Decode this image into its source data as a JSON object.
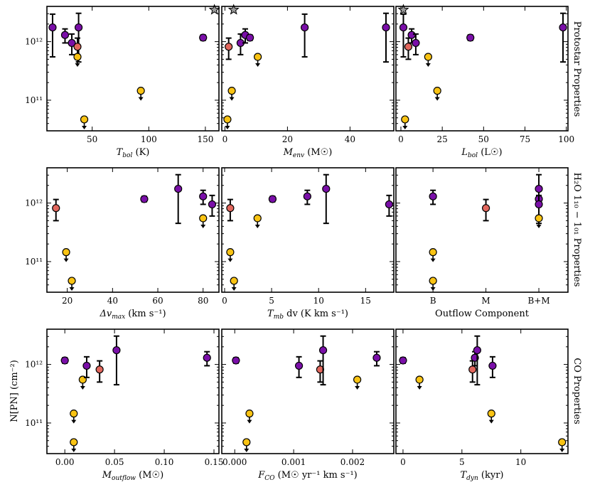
{
  "figure": {
    "row_labels": [
      "Protostar Properties",
      "H₂O 1₁₀ − 1₀₁ Properties",
      "CO Properties"
    ],
    "ylabel": "N[PN] (cm⁻²)",
    "ytick_labels": [
      "10¹²",
      "10¹¹"
    ],
    "colors": {
      "purple": "#7a0fa8",
      "salmon": "#e2675d",
      "yellow": "#f9c313",
      "grey": "#9a9a9a"
    }
  },
  "chart_data": [
    {
      "type": "scatter",
      "row": 0,
      "col": 0,
      "xlabel": "T_bol (K)",
      "xlim": [
        10,
        162
      ],
      "ylim": [
        30000000000.0,
        4000000000000.0
      ],
      "yscale": "log",
      "xticks": [
        50,
        100,
        150
      ],
      "xtick_labels": [
        "50",
        "100",
        "150"
      ],
      "points": [
        {
          "x": 15,
          "y": 1750000000000.0,
          "lo": 550000000000.0,
          "hi": 2950000000000.0,
          "c": "purple"
        },
        {
          "x": 26,
          "y": 1300000000000.0,
          "lo": 950000000000.0,
          "hi": 1650000000000.0,
          "c": "purple"
        },
        {
          "x": 32,
          "y": 950000000000.0,
          "lo": 600000000000.0,
          "hi": 1350000000000.0,
          "c": "purple"
        },
        {
          "x": 38,
          "y": 1750000000000.0,
          "lo": 450000000000.0,
          "hi": 3050000000000.0,
          "c": "purple"
        },
        {
          "x": 37,
          "y": 820000000000.0,
          "lo": 500000000000.0,
          "hi": 1150000000000.0,
          "c": "salmon"
        },
        {
          "x": 37,
          "y": 550000000000.0,
          "c": "yellow",
          "upper": true
        },
        {
          "x": 43,
          "y": 47000000000.0,
          "c": "yellow",
          "upper": true
        },
        {
          "x": 93,
          "y": 145000000000.0,
          "c": "yellow",
          "upper": true
        },
        {
          "x": 148,
          "y": 1170000000000.0,
          "lo": 1050000000000.0,
          "hi": 1300000000000.0,
          "c": "purple"
        },
        {
          "x": 158,
          "y": 3500000000000.0,
          "c": "grey",
          "star": true
        }
      ]
    },
    {
      "type": "scatter",
      "row": 0,
      "col": 1,
      "xlabel": "M_env (M☉)",
      "xlim": [
        -1,
        54
      ],
      "ylim": [
        30000000000.0,
        4000000000000.0
      ],
      "yscale": "log",
      "xticks": [
        0,
        20,
        40
      ],
      "xtick_labels": [
        "0",
        "20",
        "40"
      ],
      "points": [
        {
          "x": 1.2,
          "y": 820000000000.0,
          "lo": 500000000000.0,
          "hi": 1150000000000.0,
          "c": "salmon"
        },
        {
          "x": 0.8,
          "y": 47000000000.0,
          "c": "yellow",
          "upper": true
        },
        {
          "x": 2.2,
          "y": 145000000000.0,
          "c": "yellow",
          "upper": true
        },
        {
          "x": 2.8,
          "y": 3500000000000.0,
          "c": "grey",
          "star": true
        },
        {
          "x": 5.0,
          "y": 950000000000.0,
          "lo": 600000000000.0,
          "hi": 1350000000000.0,
          "c": "purple"
        },
        {
          "x": 6.5,
          "y": 1300000000000.0,
          "lo": 950000000000.0,
          "hi": 1650000000000.0,
          "c": "purple"
        },
        {
          "x": 8.0,
          "y": 1170000000000.0,
          "lo": 1050000000000.0,
          "hi": 1300000000000.0,
          "c": "purple"
        },
        {
          "x": 10.5,
          "y": 550000000000.0,
          "c": "yellow",
          "upper": true
        },
        {
          "x": 25.5,
          "y": 1750000000000.0,
          "lo": 550000000000.0,
          "hi": 2950000000000.0,
          "c": "purple"
        },
        {
          "x": 51.5,
          "y": 1750000000000.0,
          "lo": 450000000000.0,
          "hi": 3050000000000.0,
          "c": "purple"
        }
      ]
    },
    {
      "type": "scatter",
      "row": 0,
      "col": 2,
      "xlabel": "L_bol (L☉)",
      "xlim": [
        -3,
        101
      ],
      "ylim": [
        30000000000.0,
        4000000000000.0
      ],
      "yscale": "log",
      "xticks": [
        0,
        25,
        50,
        75,
        100
      ],
      "xtick_labels": [
        "0",
        "25",
        "50",
        "75",
        "100"
      ],
      "points": [
        {
          "x": 1.5,
          "y": 3500000000000.0,
          "c": "grey",
          "star": true
        },
        {
          "x": 1.5,
          "y": 1750000000000.0,
          "lo": 550000000000.0,
          "hi": 2950000000000.0,
          "c": "purple"
        },
        {
          "x": 2.5,
          "y": 47000000000.0,
          "c": "yellow",
          "upper": true
        },
        {
          "x": 4.5,
          "y": 820000000000.0,
          "lo": 500000000000.0,
          "hi": 1150000000000.0,
          "c": "salmon"
        },
        {
          "x": 6.5,
          "y": 1300000000000.0,
          "lo": 950000000000.0,
          "hi": 1650000000000.0,
          "c": "purple"
        },
        {
          "x": 9.0,
          "y": 950000000000.0,
          "lo": 600000000000.0,
          "hi": 1350000000000.0,
          "c": "purple"
        },
        {
          "x": 16.5,
          "y": 550000000000.0,
          "c": "yellow",
          "upper": true
        },
        {
          "x": 22.0,
          "y": 145000000000.0,
          "c": "yellow",
          "upper": true
        },
        {
          "x": 42.0,
          "y": 1170000000000.0,
          "lo": 1050000000000.0,
          "hi": 1300000000000.0,
          "c": "purple"
        },
        {
          "x": 98.0,
          "y": 1750000000000.0,
          "lo": 450000000000.0,
          "hi": 3050000000000.0,
          "c": "purple"
        }
      ]
    },
    {
      "type": "scatter",
      "row": 1,
      "col": 0,
      "xlabel": "Δv_max (km s⁻¹)",
      "xlim": [
        11,
        87
      ],
      "ylim": [
        30000000000.0,
        4000000000000.0
      ],
      "yscale": "log",
      "xticks": [
        20,
        40,
        60,
        80
      ],
      "xtick_labels": [
        "20",
        "40",
        "60",
        "80"
      ],
      "points": [
        {
          "x": 15,
          "y": 820000000000.0,
          "lo": 500000000000.0,
          "hi": 1150000000000.0,
          "c": "salmon"
        },
        {
          "x": 19.5,
          "y": 145000000000.0,
          "c": "yellow",
          "upper": true
        },
        {
          "x": 22,
          "y": 47000000000.0,
          "c": "yellow",
          "upper": true
        },
        {
          "x": 54,
          "y": 1170000000000.0,
          "lo": 1050000000000.0,
          "hi": 1300000000000.0,
          "c": "purple"
        },
        {
          "x": 69,
          "y": 1750000000000.0,
          "lo": 450000000000.0,
          "hi": 3050000000000.0,
          "c": "purple"
        },
        {
          "x": 80,
          "y": 1300000000000.0,
          "lo": 950000000000.0,
          "hi": 1650000000000.0,
          "c": "purple"
        },
        {
          "x": 80,
          "y": 550000000000.0,
          "c": "yellow",
          "upper": true
        },
        {
          "x": 84,
          "y": 950000000000.0,
          "lo": 600000000000.0,
          "hi": 1350000000000.0,
          "c": "purple"
        }
      ]
    },
    {
      "type": "scatter",
      "row": 1,
      "col": 1,
      "xlabel": "T_mb dv (K km s⁻¹)",
      "xlim": [
        -0.3,
        18.0
      ],
      "ylim": [
        30000000000.0,
        4000000000000.0
      ],
      "yscale": "log",
      "xticks": [
        0,
        5,
        10,
        15
      ],
      "xtick_labels": [
        "0",
        "5",
        "10",
        "15"
      ],
      "points": [
        {
          "x": 0.6,
          "y": 820000000000.0,
          "lo": 500000000000.0,
          "hi": 1150000000000.0,
          "c": "salmon"
        },
        {
          "x": 0.6,
          "y": 145000000000.0,
          "c": "yellow",
          "upper": true
        },
        {
          "x": 1.0,
          "y": 47000000000.0,
          "c": "yellow",
          "upper": true
        },
        {
          "x": 3.5,
          "y": 550000000000.0,
          "c": "yellow",
          "upper": true
        },
        {
          "x": 5.1,
          "y": 1170000000000.0,
          "lo": 1050000000000.0,
          "hi": 1300000000000.0,
          "c": "purple"
        },
        {
          "x": 8.8,
          "y": 1300000000000.0,
          "lo": 950000000000.0,
          "hi": 1650000000000.0,
          "c": "purple"
        },
        {
          "x": 10.8,
          "y": 1750000000000.0,
          "lo": 450000000000.0,
          "hi": 3050000000000.0,
          "c": "purple"
        },
        {
          "x": 17.5,
          "y": 950000000000.0,
          "lo": 600000000000.0,
          "hi": 1350000000000.0,
          "c": "purple"
        }
      ]
    },
    {
      "type": "scatter",
      "row": 1,
      "col": 2,
      "xlabel": "Outflow Component",
      "categories": [
        "B",
        "M",
        "B+M"
      ],
      "xlim": [
        -0.7,
        2.55
      ],
      "ylim": [
        30000000000.0,
        4000000000000.0
      ],
      "yscale": "log",
      "xticks": [
        0,
        1,
        2
      ],
      "xtick_labels": [
        "B",
        "M",
        "B+M"
      ],
      "points": [
        {
          "x": 0,
          "y": 1300000000000.0,
          "lo": 950000000000.0,
          "hi": 1650000000000.0,
          "c": "purple"
        },
        {
          "x": 0,
          "y": 145000000000.0,
          "c": "yellow",
          "upper": true
        },
        {
          "x": 0,
          "y": 47000000000.0,
          "c": "yellow",
          "upper": true
        },
        {
          "x": 1,
          "y": 820000000000.0,
          "lo": 500000000000.0,
          "hi": 1150000000000.0,
          "c": "salmon"
        },
        {
          "x": 2,
          "y": 1750000000000.0,
          "lo": 450000000000.0,
          "hi": 3050000000000.0,
          "c": "purple"
        },
        {
          "x": 2,
          "y": 1170000000000.0,
          "lo": 1050000000000.0,
          "hi": 1300000000000.0,
          "c": "purple"
        },
        {
          "x": 2,
          "y": 950000000000.0,
          "lo": 600000000000.0,
          "hi": 1350000000000.0,
          "c": "purple"
        },
        {
          "x": 2,
          "y": 550000000000.0,
          "c": "yellow",
          "upper": true
        }
      ]
    },
    {
      "type": "scatter",
      "row": 2,
      "col": 0,
      "xlabel": "M_outflow (M☉)",
      "xlim": [
        -0.018,
        0.155
      ],
      "ylim": [
        30000000000.0,
        4000000000000.0
      ],
      "yscale": "log",
      "xticks": [
        0.0,
        0.05,
        0.1,
        0.15
      ],
      "xtick_labels": [
        "0.00",
        "0.05",
        "0.10",
        "0.15"
      ],
      "points": [
        {
          "x": 0.0,
          "y": 1170000000000.0,
          "lo": 1050000000000.0,
          "hi": 1300000000000.0,
          "c": "purple"
        },
        {
          "x": 0.009,
          "y": 145000000000.0,
          "c": "yellow",
          "upper": true
        },
        {
          "x": 0.009,
          "y": 47000000000.0,
          "c": "yellow",
          "upper": true
        },
        {
          "x": 0.018,
          "y": 550000000000.0,
          "c": "yellow",
          "upper": true
        },
        {
          "x": 0.022,
          "y": 950000000000.0,
          "lo": 600000000000.0,
          "hi": 1350000000000.0,
          "c": "purple"
        },
        {
          "x": 0.035,
          "y": 820000000000.0,
          "lo": 500000000000.0,
          "hi": 1150000000000.0,
          "c": "salmon"
        },
        {
          "x": 0.052,
          "y": 1750000000000.0,
          "lo": 450000000000.0,
          "hi": 3050000000000.0,
          "c": "purple"
        },
        {
          "x": 0.143,
          "y": 1300000000000.0,
          "lo": 950000000000.0,
          "hi": 1650000000000.0,
          "c": "purple"
        }
      ]
    },
    {
      "type": "scatter",
      "row": 2,
      "col": 1,
      "xlabel": "F_CO (M☉ yr⁻¹ km s⁻¹)",
      "xlim": [
        -0.00022,
        0.0027
      ],
      "ylim": [
        30000000000.0,
        4000000000000.0
      ],
      "yscale": "log",
      "xticks": [
        0.0,
        0.001,
        0.002
      ],
      "xtick_labels": [
        "0.000",
        "0.001",
        "0.002"
      ],
      "points": [
        {
          "x": 2e-05,
          "y": 1170000000000.0,
          "lo": 1050000000000.0,
          "hi": 1300000000000.0,
          "c": "purple"
        },
        {
          "x": 0.00025,
          "y": 145000000000.0,
          "c": "yellow",
          "upper": true
        },
        {
          "x": 0.0002,
          "y": 47000000000.0,
          "c": "yellow",
          "upper": true
        },
        {
          "x": 0.00109,
          "y": 950000000000.0,
          "lo": 600000000000.0,
          "hi": 1350000000000.0,
          "c": "purple"
        },
        {
          "x": 0.00145,
          "y": 820000000000.0,
          "lo": 500000000000.0,
          "hi": 1150000000000.0,
          "c": "salmon"
        },
        {
          "x": 0.0015,
          "y": 1750000000000.0,
          "lo": 450000000000.0,
          "hi": 3050000000000.0,
          "c": "purple"
        },
        {
          "x": 0.00208,
          "y": 550000000000.0,
          "c": "yellow",
          "upper": true
        },
        {
          "x": 0.00241,
          "y": 1300000000000.0,
          "lo": 950000000000.0,
          "hi": 1650000000000.0,
          "c": "purple"
        }
      ]
    },
    {
      "type": "scatter",
      "row": 2,
      "col": 2,
      "xlabel": "T_dyn (kyr)",
      "xlim": [
        -0.6,
        14.0
      ],
      "ylim": [
        30000000000.0,
        4000000000000.0
      ],
      "yscale": "log",
      "xticks": [
        0,
        5,
        10
      ],
      "xtick_labels": [
        "0",
        "5",
        "10"
      ],
      "points": [
        {
          "x": 0.0,
          "y": 1170000000000.0,
          "lo": 1050000000000.0,
          "hi": 1300000000000.0,
          "c": "purple"
        },
        {
          "x": 1.4,
          "y": 550000000000.0,
          "c": "yellow",
          "upper": true
        },
        {
          "x": 5.9,
          "y": 820000000000.0,
          "lo": 500000000000.0,
          "hi": 1150000000000.0,
          "c": "salmon"
        },
        {
          "x": 6.1,
          "y": 1300000000000.0,
          "lo": 950000000000.0,
          "hi": 1650000000000.0,
          "c": "purple"
        },
        {
          "x": 6.3,
          "y": 1750000000000.0,
          "lo": 450000000000.0,
          "hi": 3050000000000.0,
          "c": "purple"
        },
        {
          "x": 7.6,
          "y": 950000000000.0,
          "lo": 600000000000.0,
          "hi": 1350000000000.0,
          "c": "purple"
        },
        {
          "x": 7.5,
          "y": 145000000000.0,
          "c": "yellow",
          "upper": true
        },
        {
          "x": 13.5,
          "y": 47000000000.0,
          "c": "yellow",
          "upper": true
        }
      ]
    }
  ]
}
